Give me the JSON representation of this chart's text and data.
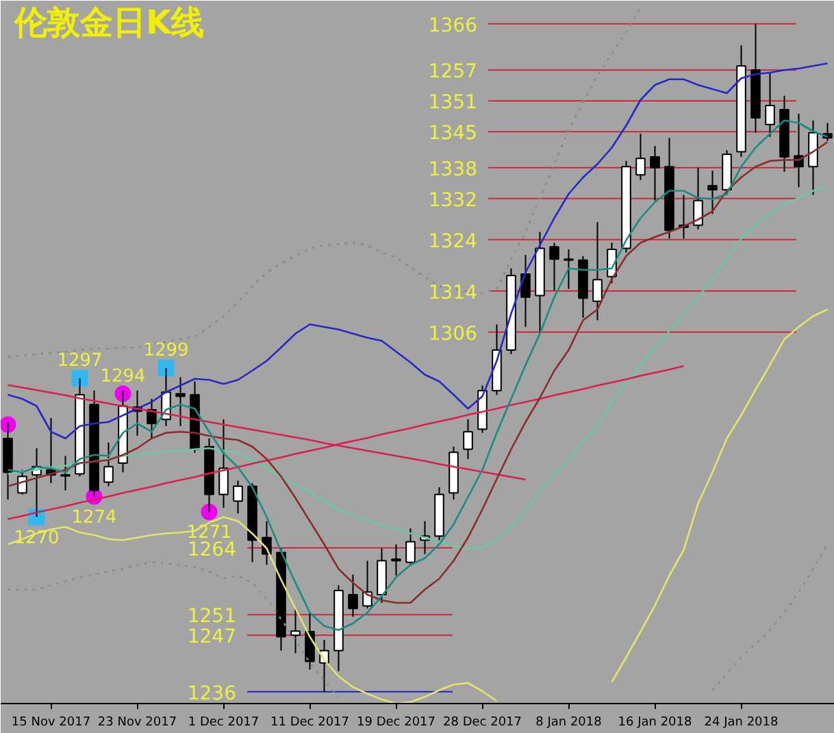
{
  "chart_data": {
    "type": "candlestick",
    "title": "伦敦金日K线",
    "categories": [
      null,
      null,
      null,
      "15 Nov 2017",
      null,
      null,
      null,
      null,
      null,
      "23 Nov 2017",
      null,
      null,
      null,
      null,
      null,
      "1 Dec 2017",
      null,
      null,
      null,
      null,
      null,
      "11 Dec 2017",
      null,
      null,
      null,
      null,
      null,
      "19 Dec 2017",
      null,
      null,
      null,
      null,
      null,
      "28 Dec 2017",
      null,
      null,
      null,
      null,
      null,
      "8 Jan 2018",
      null,
      null,
      null,
      null,
      null,
      "16 Jan 2018",
      null,
      null,
      null,
      null,
      null,
      "24 Jan 2018",
      null,
      null,
      null,
      null,
      null,
      null
    ],
    "ohlc": [
      [
        1285.3,
        1288.5,
        1273.4,
        1278.7
      ],
      [
        1274.7,
        1279.2,
        1274.4,
        1277.9
      ],
      [
        1278.2,
        1283.4,
        1270,
        1279.8
      ],
      [
        1279.2,
        1289.3,
        1276.6,
        1278.2
      ],
      [
        1278.2,
        1281.9,
        1275.2,
        1278.0
      ],
      [
        1278.4,
        1297,
        1277.9,
        1293.8
      ],
      [
        1291.9,
        1294.6,
        1274,
        1275.2
      ],
      [
        1276.8,
        1284.5,
        1276.0,
        1279.8
      ],
      [
        1280.5,
        1294.6,
        1278.7,
        1291.6
      ],
      [
        1291.4,
        1294.6,
        1285.8,
        1290.6
      ],
      [
        1290.9,
        1293.0,
        1285.3,
        1288.2
      ],
      [
        1289.0,
        1299,
        1287.7,
        1294.3
      ],
      [
        1294.0,
        1297.2,
        1287.7,
        1293.5
      ],
      [
        1293.8,
        1296.4,
        1282.5,
        1283.2
      ],
      [
        1283.7,
        1285.3,
        1271,
        1274.4
      ],
      [
        1274.4,
        1289.0,
        1271.8,
        1279.5
      ],
      [
        1273.1,
        1277.1,
        1270.7,
        1276.0
      ],
      [
        1276.0,
        1276.6,
        1261.2,
        1265.5
      ],
      [
        1266.0,
        1269.2,
        1260.7,
        1262.8
      ],
      [
        1263.1,
        1263.9,
        1244.0,
        1246.7
      ],
      [
        1247.0,
        1252.2,
        1243.5,
        1247.8
      ],
      [
        1247.7,
        1251.4,
        1240.3,
        1241.9
      ],
      [
        1241.6,
        1246.1,
        1236,
        1244.0
      ],
      [
        1244.0,
        1256.7,
        1240.0,
        1255.7
      ],
      [
        1254.9,
        1258.8,
        1250.6,
        1252.2
      ],
      [
        1252.7,
        1261.5,
        1252.2,
        1255.4
      ],
      [
        1254.9,
        1263.9,
        1253.3,
        1261.5
      ],
      [
        1261.8,
        1264.7,
        1258.6,
        1261.5
      ],
      [
        1261.2,
        1267.8,
        1260.5,
        1265.2
      ],
      [
        1265.5,
        1269.2,
        1262.8,
        1266.3
      ],
      [
        1266.3,
        1275.8,
        1265.5,
        1274.4
      ],
      [
        1274.7,
        1283.7,
        1273.4,
        1282.6
      ],
      [
        1283.2,
        1289.0,
        1281.3,
        1286.6
      ],
      [
        1287.1,
        1295.6,
        1286.4,
        1294.6
      ],
      [
        1294.6,
        1307.5,
        1293.8,
        1302.5
      ],
      [
        1302.5,
        1318.4,
        1301.7,
        1317.0
      ],
      [
        1317.3,
        1321.0,
        1307.0,
        1312.8
      ],
      [
        1313.1,
        1325.5,
        1305.7,
        1322.3
      ],
      [
        1322.6,
        1323.4,
        1314.1,
        1320.2
      ],
      [
        1320.0,
        1322.1,
        1314.4,
        1320.2
      ],
      [
        1320.0,
        1320.8,
        1308.8,
        1312.6
      ],
      [
        1312.0,
        1327.4,
        1308.3,
        1316.2
      ],
      [
        1316.8,
        1323.4,
        1315.5,
        1322.1
      ],
      [
        1322.3,
        1339.3,
        1321.5,
        1338.2
      ],
      [
        1336.6,
        1344.6,
        1335.6,
        1339.8
      ],
      [
        1340.1,
        1342.2,
        1331.6,
        1338.0
      ],
      [
        1338.2,
        1343.8,
        1324.2,
        1325.8
      ],
      [
        1326.8,
        1332.7,
        1324.2,
        1326.4
      ],
      [
        1326.8,
        1338.0,
        1326.0,
        1331.6
      ],
      [
        1334.5,
        1337.4,
        1329.0,
        1333.7
      ],
      [
        1333.7,
        1341.4,
        1332.7,
        1340.6
      ],
      [
        1341.1,
        1361.8,
        1340.1,
        1357.8
      ],
      [
        1357.0,
        1366,
        1344.8,
        1347.7
      ],
      [
        1346.4,
        1356.5,
        1344.0,
        1350.1
      ],
      [
        1349.3,
        1352.0,
        1337.2,
        1340.1
      ],
      [
        1340.3,
        1348.5,
        1334.2,
        1338.2
      ],
      [
        1338.2,
        1347.2,
        1332.7,
        1344.8
      ],
      [
        1344.6,
        1346.7,
        1343.2,
        1343.8
      ]
    ],
    "ylim": [
      1233.7,
      1370.5
    ],
    "tick_labels": "x",
    "annotations": [
      "1257"
    ],
    "series": [
      {
        "type": "line",
        "color": "#8a8a8a",
        "line_style": "dotted",
        "values": [
          1301.2,
          1301.4,
          1301.7,
          1302.0,
          1302.2,
          1302.5,
          1302.8,
          1302.8,
          1303.0,
          1303.0,
          1303.6,
          1304.1,
          1304.6,
          1305.1,
          1307.0,
          1309.1,
          1311.8,
          1314.9,
          1317.6,
          1319.4,
          1320.8,
          1322.3,
          1322.9,
          1323.1,
          1323.4,
          1322.9,
          1321.5,
          1320.5,
          1318.6,
          1316.8,
          1314.9,
          1314.4,
          1313.9,
          1313.6,
          1314.4,
          1320.2,
          1325.5,
          1332.1,
          1338.7,
          1345.4,
          1350.7,
          1355.9,
          1360.2,
          1364.4,
          1369.2,
          null,
          null,
          null,
          null,
          null,
          null,
          null,
          null,
          null,
          null,
          null,
          null,
          null
        ]
      },
      {
        "type": "line",
        "color": "#8a8a8a",
        "line_style": "dotted",
        "values": [
          1255.9,
          1255.9,
          1255.9,
          1256.7,
          1257.5,
          1258.3,
          1258.8,
          1259.4,
          1259.9,
          1260.7,
          1261.2,
          1261.0,
          1260.7,
          1260.2,
          1259.4,
          1258.0,
          1258.6,
          1257.2,
          1254.1,
          1250.1,
          1246.1,
          1241.6,
          1238.2,
          1235.0,
          null,
          null,
          null,
          null,
          null,
          null,
          null,
          null,
          null,
          null,
          null,
          null,
          null,
          null,
          null,
          null,
          null,
          null,
          null,
          null,
          null,
          null,
          null,
          null,
          null,
          1236.3,
          1239.5,
          1242.7,
          1245.3,
          1248.0,
          1251.4,
          1255.4,
          1259.9,
          1264.7
        ]
      },
      {
        "type": "line",
        "color": "#2828c8",
        "values": [
          1293.8,
          1293.0,
          1291.6,
          1286.6,
          1285.3,
          1287.7,
          1288.2,
          1288.5,
          1289.8,
          1291.1,
          1292.4,
          1294.3,
          1295.6,
          1296.9,
          1296.7,
          1295.9,
          1296.7,
          1298.5,
          1300.4,
          1303.0,
          1305.7,
          1307.5,
          1307.0,
          1306.5,
          1305.7,
          1304.9,
          1304.3,
          1302.2,
          1300.1,
          1297.7,
          1296.4,
          1293.8,
          1291.1,
          1293.5,
          1300.4,
          1309.6,
          1317.6,
          1322.9,
          1328.2,
          1332.9,
          1336.1,
          1338.7,
          1341.9,
          1346.2,
          1351.2,
          1354.1,
          1355.2,
          1355.2,
          1354.1,
          1353.3,
          1352.5,
          1355.4,
          1356.2,
          1356.5,
          1357.0,
          1357.3,
          1357.8,
          1358.3
        ]
      },
      {
        "type": "line",
        "color": "#e4e46a",
        "values": [
          1264.7,
          1265.7,
          1266.8,
          1267.6,
          1268.1,
          1267.0,
          1266.5,
          1265.7,
          1265.5,
          1266.0,
          1266.5,
          1266.8,
          1267.0,
          1267.3,
          1268.9,
          1270.0,
          1269.2,
          1266.8,
          1263.9,
          1257.8,
          1252.2,
          1246.7,
          1242.2,
          1239.0,
          1236.9,
          1235.6,
          1234.5,
          1233.7,
          1234.0,
          1235.0,
          1236.3,
          1237.4,
          1237.7,
          1236.1,
          1234.2,
          null,
          null,
          null,
          null,
          null,
          null,
          null,
          1237.9,
          1242.7,
          1247.7,
          1252.8,
          1258.6,
          1263.6,
          1272.6,
          1278.7,
          1285.3,
          1289.8,
          1294.8,
          1299.6,
          1304.6,
          1307.0,
          1309.1,
          1310.4
        ]
      },
      {
        "type": "line",
        "color": "#6cc8a0",
        "values": [
          1278.4,
          1278.9,
          1279.2,
          1279.7,
          1280.0,
          1280.5,
          1280.8,
          1281.3,
          1281.9,
          1282.1,
          1282.4,
          1282.7,
          1282.9,
          1283.2,
          1283.4,
          1282.9,
          1282.4,
          1281.1,
          1279.5,
          1277.9,
          1276.3,
          1274.7,
          1273.1,
          1271.5,
          1270.5,
          1269.4,
          1268.4,
          1267.6,
          1266.8,
          1266.0,
          1265.2,
          1264.4,
          1263.9,
          1264.1,
          1265.5,
          1268.1,
          1271.3,
          1275.0,
          1278.4,
          1281.1,
          1284.5,
          1287.9,
          1292.4,
          1295.9,
          1299.6,
          1303.0,
          1306.2,
          1309.6,
          1312.8,
          1316.3,
          1320.2,
          1324.2,
          1326.8,
          1329.0,
          1330.8,
          1332.1,
          1333.5,
          1334.2
        ]
      },
      {
        "type": "line",
        "color": "#dc1e50",
        "values": [
          1295.7,
          1295.2,
          1294.7,
          1294.2,
          1293.7,
          1293.1,
          1292.6,
          1292.1,
          1291.6,
          1291.1,
          1290.6,
          1290.1,
          1289.6,
          1289.0,
          1288.5,
          1288.0,
          1287.5,
          1287.0,
          1286.5,
          1286.0,
          1285.5,
          1285.0,
          1284.4,
          1283.9,
          1283.4,
          1282.9,
          1282.4,
          1281.9,
          1281.4,
          1280.9,
          1280.3,
          1279.8,
          1279.3,
          1278.8,
          1278.3,
          1277.8,
          1277.3,
          null,
          null,
          null,
          null,
          null,
          null,
          null,
          null,
          null,
          null,
          null,
          null,
          null,
          null,
          null,
          null,
          null,
          null,
          null,
          null,
          null
        ]
      },
      {
        "type": "line",
        "color": "#dc1e50",
        "values": [
          1269.6,
          1270.2,
          1270.9,
          1271.5,
          1272.1,
          1272.8,
          1273.4,
          1274.0,
          1274.7,
          1275.3,
          1275.9,
          1276.6,
          1277.2,
          1277.8,
          1278.5,
          1279.1,
          1279.7,
          1280.4,
          1281.0,
          1281.6,
          1282.3,
          1282.9,
          1283.5,
          1284.2,
          1284.8,
          1285.4,
          1286.1,
          1286.7,
          1287.3,
          1288.0,
          1288.6,
          1289.2,
          1289.9,
          1290.5,
          1291.1,
          1291.8,
          1292.4,
          1293.0,
          1293.7,
          1294.3,
          1294.9,
          1295.6,
          1296.2,
          1296.8,
          1297.5,
          1298.1,
          1298.7,
          1299.4,
          null,
          null,
          null,
          null,
          null,
          null,
          null,
          null,
          null,
          null
        ]
      },
      {
        "type": "line",
        "color": "#8b2c2c",
        "values": [
          1276.0,
          1276.8,
          1277.6,
          1278.4,
          1279.2,
          1280.5,
          1280.8,
          1281.1,
          1282.1,
          1283.4,
          1285.3,
          1286.4,
          1286.6,
          1286.4,
          1285.8,
          1285.3,
          1285.0,
          1283.7,
          1281.3,
          1277.9,
          1273.7,
          1269.2,
          1264.7,
          1259.9,
          1257.2,
          1254.9,
          1253.8,
          1253.3,
          1253.3,
          1255.9,
          1258.0,
          1261.5,
          1266.0,
          1271.5,
          1277.4,
          1283.2,
          1288.5,
          1293.2,
          1298.5,
          1302.5,
          1308.3,
          1310.4,
          1316.3,
          1320.8,
          1323.4,
          1324.5,
          1325.5,
          1326.6,
          1327.9,
          1329.5,
          1333.5,
          1336.1,
          1338.2,
          1339.3,
          1339.5,
          1339.5,
          1341.1,
          1343.0
        ]
      },
      {
        "type": "line",
        "color": "#1a8c84",
        "values": [
          1279.2,
          1278.7,
          1279.7,
          1279.5,
          1278.7,
          1281.3,
          1282.1,
          1281.9,
          1286.4,
          1288.2,
          1286.6,
          1290.9,
          1291.9,
          1291.1,
          1286.6,
          1282.4,
          1279.7,
          1275.8,
          1270.0,
          1263.3,
          1257.2,
          1251.4,
          1248.8,
          1248.0,
          1249.3,
          1251.4,
          1254.6,
          1258.3,
          1260.7,
          1262.0,
          1264.7,
          1268.6,
          1273.9,
          1279.2,
          1286.4,
          1293.0,
          1299.6,
          1305.7,
          1312.8,
          1318.4,
          1318.1,
          1318.1,
          1318.4,
          1323.9,
          1328.2,
          1331.3,
          1333.5,
          1333.5,
          1332.1,
          1331.9,
          1332.9,
          1338.2,
          1341.9,
          1344.6,
          1347.2,
          1346.7,
          1345.1,
          1344.0
        ]
      },
      {
        "type": "scatter",
        "marker": "square",
        "color": "#30b8f0",
        "values": [
          null,
          null,
          1270,
          null,
          null,
          1297,
          null,
          null,
          null,
          null,
          null,
          1299,
          null,
          null,
          null,
          null,
          null,
          null,
          null,
          null,
          null,
          null,
          null,
          null,
          null,
          null,
          null,
          null,
          null,
          null,
          null,
          null,
          null,
          null,
          null,
          null,
          null,
          null,
          null,
          null,
          null,
          null,
          null,
          null,
          null,
          null,
          null,
          null,
          null,
          null,
          null,
          null,
          null,
          null,
          null,
          null,
          null,
          null
        ],
        "value_labels": [
          null,
          null,
          "1270",
          null,
          null,
          "1297",
          null,
          null,
          null,
          null,
          null,
          "1299",
          null,
          null,
          null,
          null,
          null,
          null,
          null,
          null,
          null,
          null,
          null,
          null,
          null,
          null,
          null,
          null,
          null,
          null,
          null,
          null,
          null,
          null,
          null,
          null,
          null,
          null,
          null,
          null,
          null,
          null,
          null,
          null,
          null,
          null,
          null,
          null,
          null,
          null,
          null,
          null,
          null,
          null,
          null,
          null,
          null,
          null
        ]
      },
      {
        "type": "scatter",
        "marker": "circle",
        "color": "#f000f0",
        "values": [
          1288,
          null,
          null,
          null,
          null,
          null,
          1274,
          null,
          1294,
          null,
          null,
          null,
          null,
          null,
          1271,
          null,
          null,
          null,
          null,
          null,
          null,
          null,
          null,
          null,
          null,
          null,
          null,
          null,
          null,
          null,
          null,
          null,
          null,
          null,
          null,
          null,
          null,
          null,
          null,
          null,
          null,
          null,
          null,
          null,
          null,
          null,
          null,
          null,
          null,
          null,
          null,
          null,
          null,
          null,
          null,
          null,
          null,
          null
        ],
        "value_labels": [
          null,
          null,
          null,
          null,
          null,
          null,
          "1274",
          null,
          "1294",
          null,
          null,
          null,
          null,
          null,
          "1271",
          null,
          null,
          null,
          null,
          null,
          null,
          null,
          null,
          null,
          null,
          null,
          null,
          null,
          null,
          null,
          null,
          null,
          null,
          null,
          null,
          null,
          null,
          null,
          null,
          null,
          null,
          null,
          null,
          null,
          null,
          null,
          null,
          null,
          null,
          null,
          null,
          null,
          null,
          null,
          null,
          null,
          null,
          null
        ]
      }
    ],
    "ref_lines": [
      {
        "axis": "y",
        "value": 1366,
        "label": "1366",
        "color": "#c8283c"
      },
      {
        "axis": "y",
        "value": 1357,
        "color": "#c8283c"
      },
      {
        "axis": "y",
        "value": 1351,
        "label": "1351",
        "color": "#c8283c"
      },
      {
        "axis": "y",
        "value": 1345,
        "label": "1345",
        "color": "#c8283c"
      },
      {
        "axis": "y",
        "value": 1338,
        "label": "1338",
        "color": "#c8283c"
      },
      {
        "axis": "y",
        "value": 1332,
        "label": "1332",
        "color": "#c8283c"
      },
      {
        "axis": "y",
        "value": 1324,
        "label": "1324",
        "color": "#c8283c"
      },
      {
        "axis": "y",
        "value": 1314,
        "label": "1314",
        "color": "#c8283c"
      },
      {
        "axis": "y",
        "value": 1306,
        "label": "1306",
        "color": "#c8283c"
      },
      {
        "axis": "y",
        "value": 1264,
        "label": "1264",
        "color": "#c8283c"
      },
      {
        "axis": "y",
        "value": 1251,
        "label": "1251",
        "color": "#c8283c"
      },
      {
        "axis": "y",
        "value": 1247,
        "label": "1247",
        "color": "#c8283c"
      },
      {
        "axis": "y",
        "value": 1236,
        "label": "1236",
        "color": "#2020c0"
      }
    ]
  }
}
